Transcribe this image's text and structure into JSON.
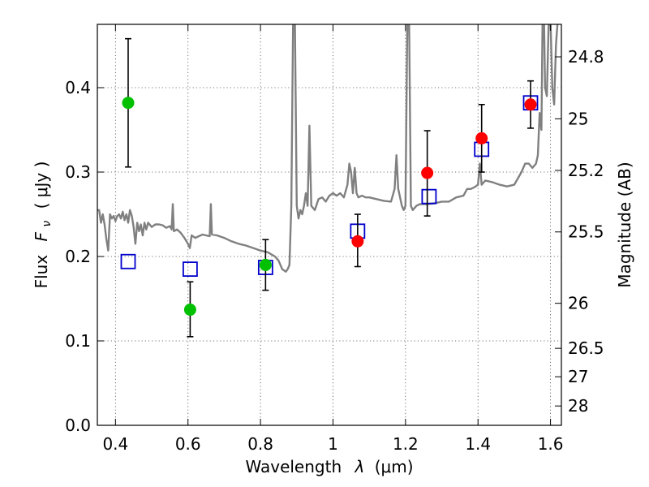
{
  "chart_data": {
    "type": "scatter",
    "x_axis": {
      "label_prefix": "Wavelength",
      "label_symbol": "λ",
      "label_units": "(μm)",
      "range": [
        0.35,
        1.63
      ],
      "ticks": [
        0.4,
        0.6,
        0.8,
        1.0,
        1.2,
        1.4,
        1.6
      ],
      "tick_labels": [
        "0.4",
        "0.6",
        "0.8",
        "1",
        "1.2",
        "1.4",
        "1.6"
      ]
    },
    "y_axis_left": {
      "label_prefix": "Flux",
      "label_symbol": "F",
      "label_symbol_sub": "ν",
      "label_units": "( μJy )",
      "range": [
        0.0,
        0.475
      ],
      "ticks": [
        0.0,
        0.1,
        0.2,
        0.3,
        0.4
      ],
      "tick_labels": [
        "0.0",
        "0.1",
        "0.2",
        "0.3",
        "0.4"
      ]
    },
    "y_axis_right": {
      "label": "Magnitude (AB)",
      "tick_labels": [
        "24.8",
        "25",
        "25.2",
        "25.5",
        "26",
        "26.5",
        "27",
        "28"
      ]
    },
    "grid": true,
    "model_spectrum": {
      "color": "#808080",
      "points": [
        [
          0.35,
          0.255
        ],
        [
          0.355,
          0.255
        ],
        [
          0.36,
          0.24
        ],
        [
          0.365,
          0.25
        ],
        [
          0.37,
          0.238
        ],
        [
          0.375,
          0.22
        ],
        [
          0.38,
          0.207
        ],
        [
          0.385,
          0.25
        ],
        [
          0.39,
          0.245
        ],
        [
          0.395,
          0.248
        ],
        [
          0.4,
          0.242
        ],
        [
          0.405,
          0.248
        ],
        [
          0.41,
          0.25
        ],
        [
          0.415,
          0.245
        ],
        [
          0.42,
          0.253
        ],
        [
          0.425,
          0.243
        ],
        [
          0.43,
          0.25
        ],
        [
          0.435,
          0.24
        ],
        [
          0.44,
          0.255
        ],
        [
          0.445,
          0.248
        ],
        [
          0.45,
          0.235
        ],
        [
          0.455,
          0.215
        ],
        [
          0.46,
          0.24
        ],
        [
          0.465,
          0.23
        ],
        [
          0.47,
          0.238
        ],
        [
          0.475,
          0.225
        ],
        [
          0.48,
          0.24
        ],
        [
          0.485,
          0.232
        ],
        [
          0.49,
          0.24
        ],
        [
          0.5,
          0.235
        ],
        [
          0.51,
          0.238
        ],
        [
          0.52,
          0.238
        ],
        [
          0.53,
          0.237
        ],
        [
          0.54,
          0.234
        ],
        [
          0.55,
          0.236
        ],
        [
          0.555,
          0.232
        ],
        [
          0.558,
          0.262
        ],
        [
          0.561,
          0.23
        ],
        [
          0.57,
          0.232
        ],
        [
          0.58,
          0.228
        ],
        [
          0.59,
          0.222
        ],
        [
          0.6,
          0.215
        ],
        [
          0.605,
          0.21
        ],
        [
          0.61,
          0.225
        ],
        [
          0.62,
          0.222
        ],
        [
          0.63,
          0.224
        ],
        [
          0.64,
          0.226
        ],
        [
          0.65,
          0.225
        ],
        [
          0.66,
          0.224
        ],
        [
          0.663,
          0.262
        ],
        [
          0.666,
          0.226
        ],
        [
          0.68,
          0.225
        ],
        [
          0.7,
          0.222
        ],
        [
          0.72,
          0.218
        ],
        [
          0.74,
          0.215
        ],
        [
          0.76,
          0.213
        ],
        [
          0.78,
          0.21
        ],
        [
          0.8,
          0.207
        ],
        [
          0.82,
          0.205
        ],
        [
          0.84,
          0.2
        ],
        [
          0.85,
          0.195
        ],
        [
          0.86,
          0.185
        ],
        [
          0.87,
          0.182
        ],
        [
          0.875,
          0.185
        ],
        [
          0.88,
          0.19
        ],
        [
          0.885,
          0.26
        ],
        [
          0.89,
          0.48
        ],
        [
          0.895,
          0.48
        ],
        [
          0.9,
          0.26
        ],
        [
          0.905,
          0.245
        ],
        [
          0.91,
          0.255
        ],
        [
          0.915,
          0.25
        ],
        [
          0.92,
          0.26
        ],
        [
          0.925,
          0.275
        ],
        [
          0.93,
          0.26
        ],
        [
          0.935,
          0.355
        ],
        [
          0.94,
          0.26
        ],
        [
          0.95,
          0.255
        ],
        [
          0.96,
          0.268
        ],
        [
          0.97,
          0.27
        ],
        [
          0.98,
          0.265
        ],
        [
          0.99,
          0.272
        ],
        [
          1.0,
          0.275
        ],
        [
          1.01,
          0.272
        ],
        [
          1.02,
          0.275
        ],
        [
          1.03,
          0.27
        ],
        [
          1.04,
          0.285
        ],
        [
          1.045,
          0.31
        ],
        [
          1.05,
          0.3
        ],
        [
          1.055,
          0.275
        ],
        [
          1.06,
          0.305
        ],
        [
          1.065,
          0.275
        ],
        [
          1.07,
          0.27
        ],
        [
          1.08,
          0.272
        ],
        [
          1.09,
          0.27
        ],
        [
          1.1,
          0.27
        ],
        [
          1.12,
          0.268
        ],
        [
          1.14,
          0.266
        ],
        [
          1.16,
          0.265
        ],
        [
          1.17,
          0.28
        ],
        [
          1.175,
          0.32
        ],
        [
          1.18,
          0.28
        ],
        [
          1.19,
          0.26
        ],
        [
          1.195,
          0.255
        ],
        [
          1.2,
          0.26
        ],
        [
          1.205,
          0.48
        ],
        [
          1.21,
          0.48
        ],
        [
          1.215,
          0.26
        ],
        [
          1.22,
          0.255
        ],
        [
          1.23,
          0.26
        ],
        [
          1.24,
          0.262
        ],
        [
          1.26,
          0.262
        ],
        [
          1.28,
          0.263
        ],
        [
          1.3,
          0.265
        ],
        [
          1.32,
          0.265
        ],
        [
          1.34,
          0.27
        ],
        [
          1.36,
          0.272
        ],
        [
          1.37,
          0.28
        ],
        [
          1.38,
          0.28
        ],
        [
          1.39,
          0.282
        ],
        [
          1.4,
          0.285
        ],
        [
          1.405,
          0.31
        ],
        [
          1.41,
          0.285
        ],
        [
          1.42,
          0.29
        ],
        [
          1.44,
          0.288
        ],
        [
          1.46,
          0.285
        ],
        [
          1.48,
          0.283
        ],
        [
          1.5,
          0.285
        ],
        [
          1.52,
          0.3
        ],
        [
          1.53,
          0.31
        ],
        [
          1.54,
          0.31
        ],
        [
          1.55,
          0.305
        ],
        [
          1.56,
          0.31
        ],
        [
          1.565,
          0.32
        ],
        [
          1.57,
          0.37
        ],
        [
          1.575,
          0.35
        ],
        [
          1.578,
          0.48
        ],
        [
          1.582,
          0.48
        ],
        [
          1.585,
          0.4
        ],
        [
          1.59,
          0.39
        ],
        [
          1.595,
          0.48
        ],
        [
          1.6,
          0.48
        ],
        [
          1.605,
          0.4
        ],
        [
          1.61,
          0.38
        ],
        [
          1.615,
          0.45
        ],
        [
          1.62,
          0.48
        ],
        [
          1.63,
          0.48
        ]
      ]
    },
    "observed_green": {
      "color": "#00c000",
      "points": [
        {
          "x": 0.435,
          "y": 0.382,
          "err_low": 0.306,
          "err_high": 0.458
        },
        {
          "x": 0.606,
          "y": 0.137,
          "err_low": 0.105,
          "err_high": 0.17
        },
        {
          "x": 0.814,
          "y": 0.19,
          "err_low": 0.16,
          "err_high": 0.22
        }
      ]
    },
    "observed_red": {
      "color": "#ff0000",
      "points": [
        {
          "x": 1.068,
          "y": 0.218,
          "err_low": 0.188,
          "err_high": 0.25
        },
        {
          "x": 1.26,
          "y": 0.299,
          "err_low": 0.248,
          "err_high": 0.349
        },
        {
          "x": 1.41,
          "y": 0.34,
          "err_low": 0.3,
          "err_high": 0.38
        },
        {
          "x": 1.545,
          "y": 0.38,
          "err_low": 0.352,
          "err_high": 0.408
        }
      ]
    },
    "model_squares": {
      "color": "#0000cc",
      "points": [
        {
          "x": 0.435,
          "y": 0.194
        },
        {
          "x": 0.606,
          "y": 0.185
        },
        {
          "x": 0.814,
          "y": 0.187
        },
        {
          "x": 1.068,
          "y": 0.23
        },
        {
          "x": 1.265,
          "y": 0.271
        },
        {
          "x": 1.41,
          "y": 0.327
        },
        {
          "x": 1.545,
          "y": 0.382
        }
      ]
    }
  }
}
